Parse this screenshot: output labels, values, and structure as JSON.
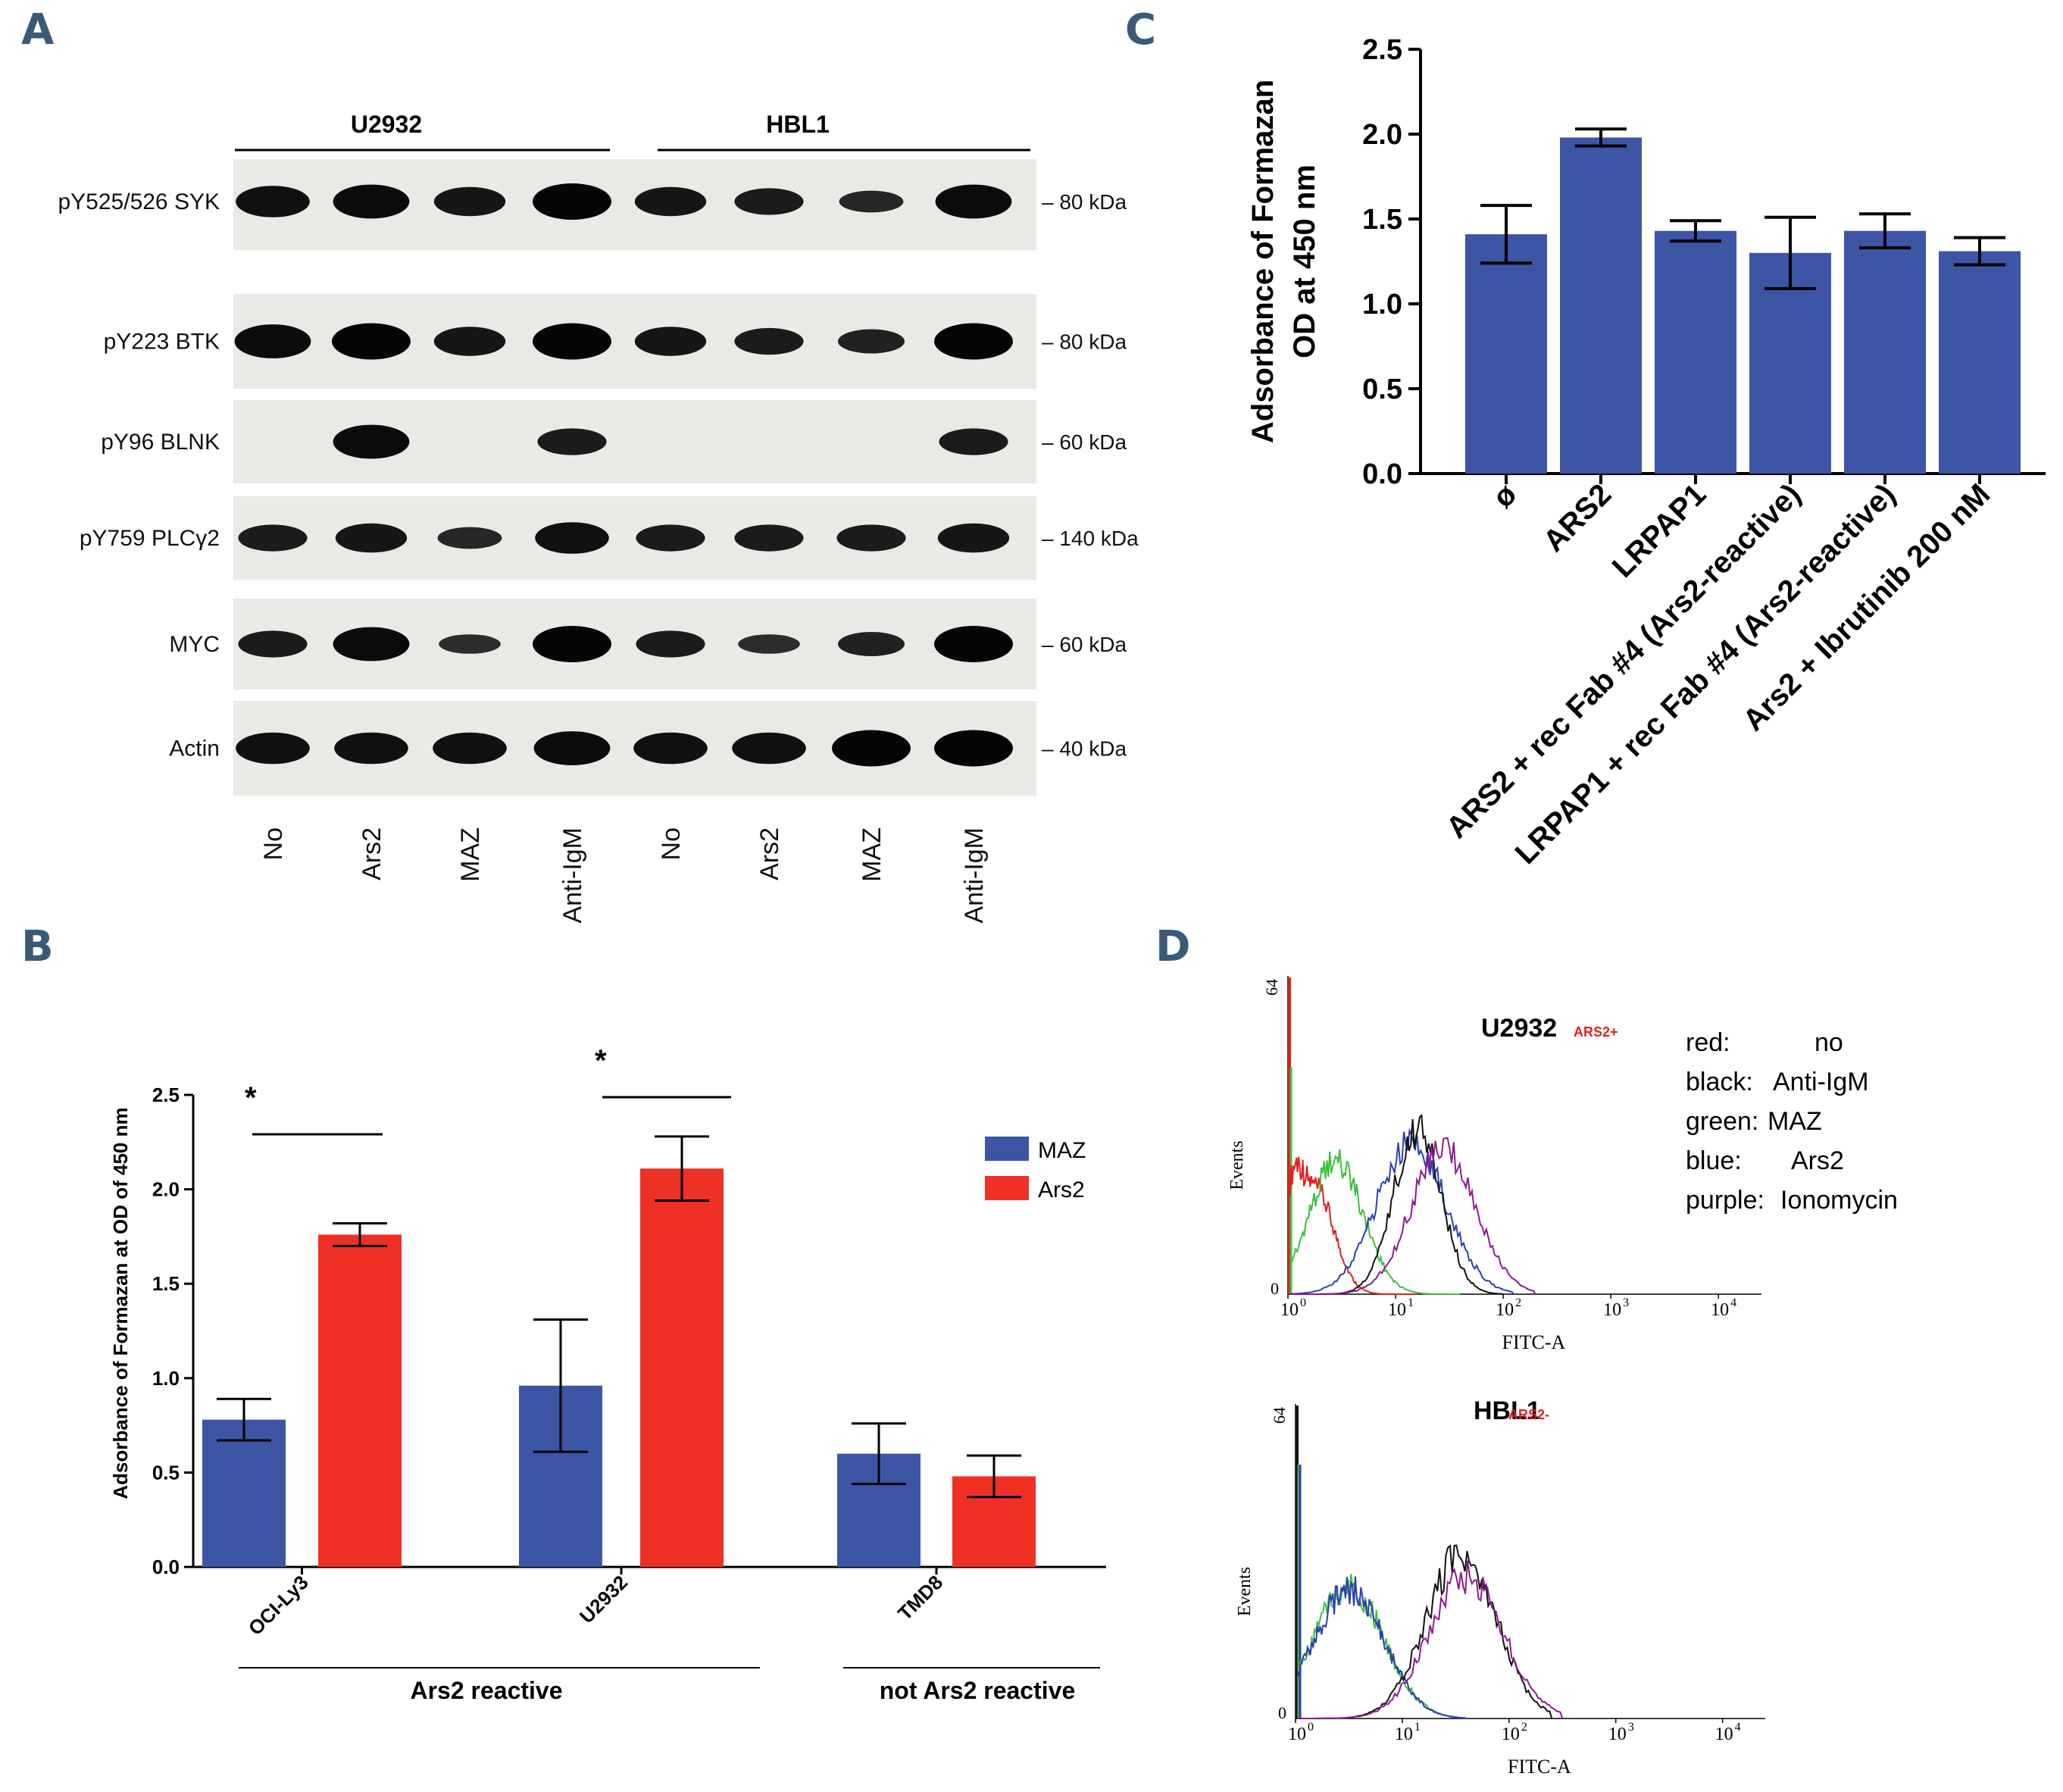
{
  "panels": [
    "A",
    "B",
    "C",
    "D"
  ],
  "panel_a": {
    "groups": [
      "U2932",
      "HBL1"
    ],
    "rows": [
      {
        "label": "pY525/526 SYK",
        "mw": "– 80 kDa"
      },
      {
        "label": "pY223 BTK",
        "mw": "– 80 kDa"
      },
      {
        "label": "pY96 BLNK",
        "mw": "– 60 kDa"
      },
      {
        "label": "pY759 PLCγ2",
        "mw": "– 140 kDa"
      },
      {
        "label": "MYC",
        "mw": "– 60 kDa"
      },
      {
        "label": "Actin",
        "mw": "– 40 kDa"
      }
    ],
    "lanes": [
      "No",
      "Ars2",
      "MAZ",
      "Anti-IgM",
      "No",
      "Ars2",
      "MAZ",
      "Anti-IgM"
    ],
    "band_intensity": [
      [
        0.8,
        0.9,
        0.7,
        1.0,
        0.7,
        0.6,
        0.4,
        0.9
      ],
      [
        0.9,
        1.0,
        0.7,
        1.0,
        0.7,
        0.6,
        0.5,
        1.0
      ],
      [
        0.0,
        0.9,
        0.0,
        0.6,
        0.0,
        0.0,
        0.0,
        0.6
      ],
      [
        0.6,
        0.7,
        0.4,
        0.8,
        0.6,
        0.6,
        0.6,
        0.7
      ],
      [
        0.6,
        0.9,
        0.3,
        1.0,
        0.6,
        0.3,
        0.5,
        1.0
      ],
      [
        0.8,
        0.8,
        0.8,
        0.9,
        0.8,
        0.8,
        1.0,
        1.0
      ]
    ]
  },
  "chart_data": [
    {
      "id": "B",
      "type": "bar",
      "ylabel": "Adsorbance of Formazan at OD of 450 nm",
      "ylim": [
        0,
        2.5
      ],
      "yticks": [
        "0.0",
        "0.5",
        "1.0",
        "1.5",
        "2.0",
        "2.5"
      ],
      "categories": [
        "OCI-Ly3",
        "U2932",
        "TMD8"
      ],
      "series": [
        {
          "name": "MAZ",
          "color": "#3c55a5",
          "values": [
            0.78,
            0.96,
            0.6
          ],
          "errors": [
            0.11,
            0.35,
            0.16
          ]
        },
        {
          "name": "Ars2",
          "color": "#ee3124",
          "values": [
            1.76,
            2.11,
            0.48
          ],
          "errors": [
            0.06,
            0.17,
            0.11
          ]
        }
      ],
      "significance": [
        "*",
        "*"
      ],
      "group_labels": [
        "Ars2 reactive",
        "not Ars2 reactive"
      ]
    },
    {
      "id": "C",
      "type": "bar",
      "ylabel_lines": [
        "Adsorbance of Formazan",
        "OD at 450 nm"
      ],
      "ylim": [
        0,
        2.5
      ],
      "yticks": [
        "0.0",
        "0.5",
        "1.0",
        "1.5",
        "2.0",
        "2.5"
      ],
      "categories": [
        "ø",
        "ARS2",
        "LRPAP1",
        "ARS2 + rec Fab #4 (Ars2-reactive)",
        "LRPAP1 + rec Fab #4 (Ars2-reactive)",
        "Ars2 + Ibrutinib 200 nM"
      ],
      "values": [
        1.41,
        1.98,
        1.43,
        1.3,
        1.43,
        1.31
      ],
      "errors": [
        0.17,
        0.05,
        0.06,
        0.21,
        0.1,
        0.08
      ],
      "color": "#3c55a5"
    },
    {
      "id": "D",
      "type": "histogram",
      "ylabel": "Events",
      "xlabel": "FITC-A",
      "ymax_label": "64",
      "ymin_label": "0",
      "x_ticks": [
        {
          "base": "10",
          "exp": "0"
        },
        {
          "base": "10",
          "exp": "1"
        },
        {
          "base": "10",
          "exp": "2"
        },
        {
          "base": "10",
          "exp": "3"
        },
        {
          "base": "10",
          "exp": "4"
        }
      ],
      "plots": [
        {
          "title": "U2932",
          "tag": "ARS2+"
        },
        {
          "title": "HBL1",
          "tag": "ARS2-"
        }
      ],
      "legend": [
        {
          "color_name": "red:",
          "label": "no"
        },
        {
          "color_name": "black:",
          "label": "Anti-IgM"
        },
        {
          "color_name": "green:",
          "label": "MAZ"
        },
        {
          "color_name": "blue:",
          "label": "Ars2"
        },
        {
          "color_name": "purple:",
          "label": "Ionomycin"
        }
      ],
      "series_colors": {
        "red": "#e0201b",
        "black": "#111111",
        "green": "#3fbf3f",
        "blue": "#2b3fb0",
        "purple": "#8e1a8e"
      }
    }
  ]
}
